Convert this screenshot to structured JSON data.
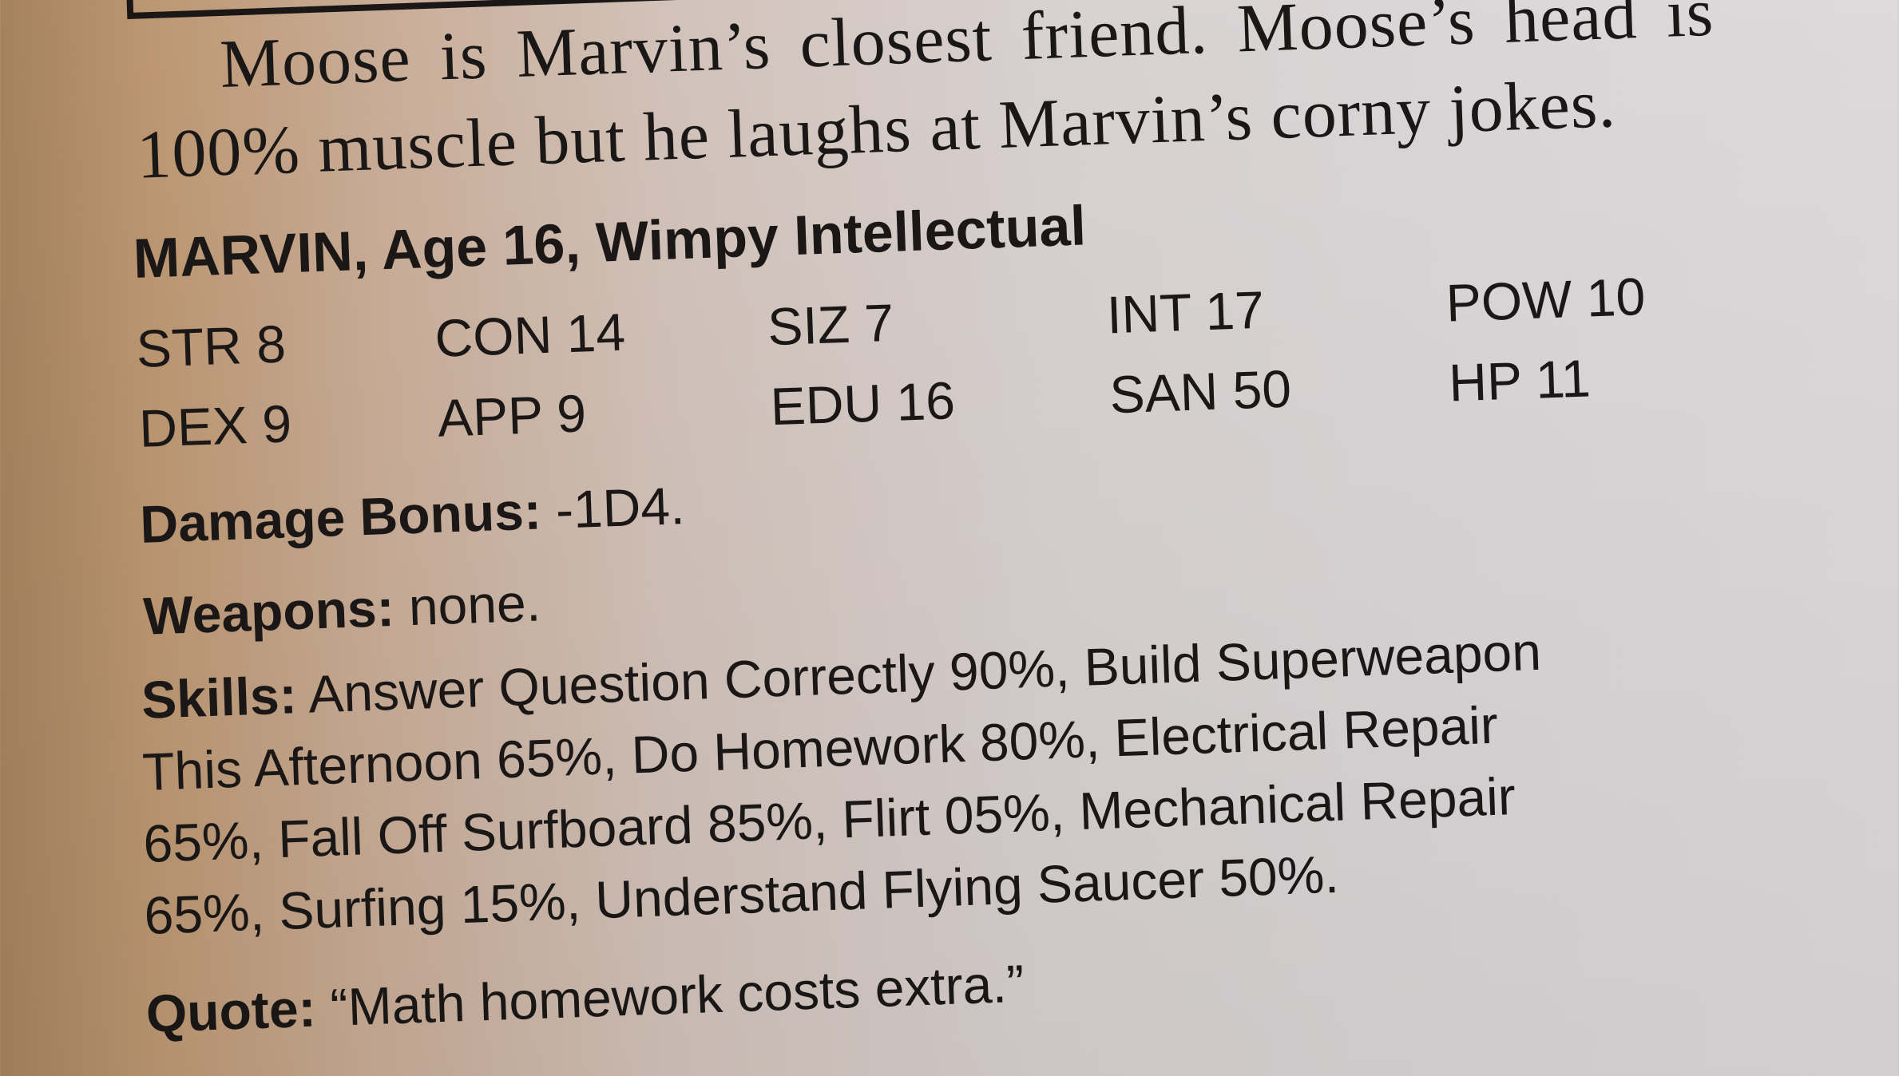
{
  "intro": {
    "line1": "Moose is Marvin’s closest friend. Moose’s head is",
    "line2": "100% muscle but he laughs at Marvin’s corny jokes."
  },
  "character": {
    "heading": "MARVIN, Age 16, Wimpy Intellectual",
    "stats": [
      [
        "STR 8",
        "CON 14",
        "SIZ 7",
        "INT 17",
        "POW 10"
      ],
      [
        "DEX 9",
        "APP 9",
        "EDU 16",
        "SAN 50",
        "HP 11"
      ]
    ],
    "damage_label": "Damage Bonus:",
    "damage_value": " -1D4.",
    "weapons_label": "Weapons:",
    "weapons_value": " none.",
    "skills_label": "Skills:",
    "skills_lines": [
      " Answer Question Correctly 90%, Build Superweapon",
      "This Afternoon 65%, Do Homework 80%, Electrical Repair",
      "65%, Fall Off Surfboard 85%, Flirt 05%, Mechanical Repair",
      "65%,  Surfing 15%, Understand Flying Saucer 50%."
    ],
    "quote_label": "Quote:",
    "quote_value": " “Math homework costs extra.”"
  }
}
